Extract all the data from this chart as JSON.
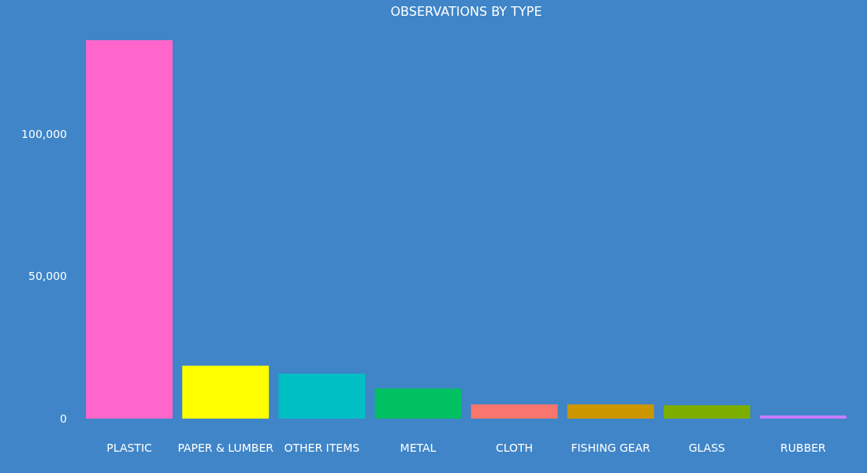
{
  "chart_data": {
    "type": "bar",
    "title": "OBSERVATIONS BY TYPE",
    "categories": [
      "PLASTIC",
      "PAPER & LUMBER",
      "OTHER ITEMS",
      "METAL",
      "CLOTH",
      "FISHING GEAR",
      "GLASS",
      "RUBBER"
    ],
    "values": [
      133000,
      18600,
      15800,
      10600,
      5000,
      5000,
      4700,
      1100
    ],
    "colors": [
      "#ff66cc",
      "#ffff00",
      "#00bfc4",
      "#00c062",
      "#f8766d",
      "#cc9600",
      "#7cae00",
      "#c77cff"
    ],
    "ylim": [
      0,
      133000
    ],
    "yticks": [
      {
        "value": 0,
        "label": "0"
      },
      {
        "value": 50000,
        "label": "50,000"
      },
      {
        "value": 100000,
        "label": "100,000"
      }
    ],
    "grid": false
  }
}
